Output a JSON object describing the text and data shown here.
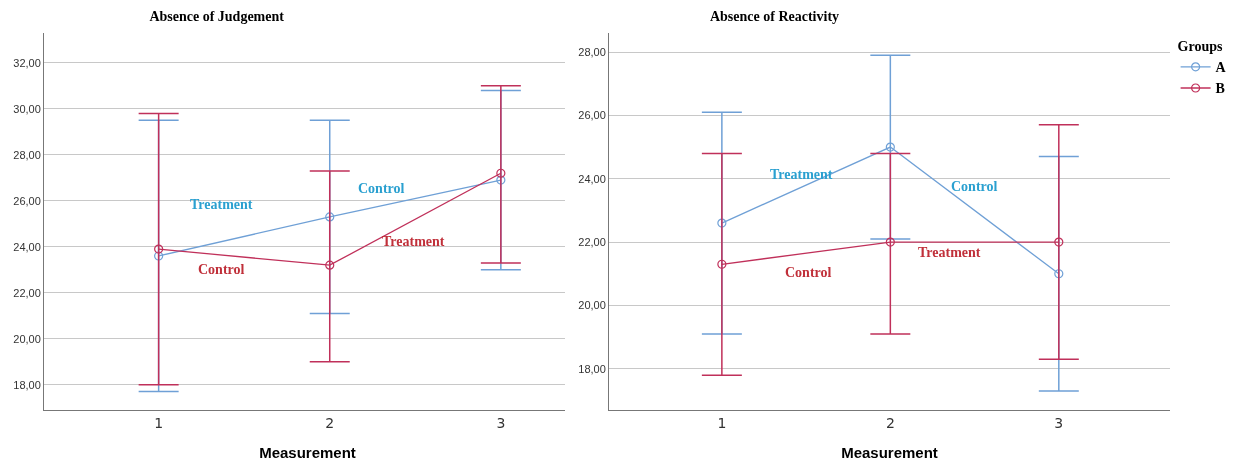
{
  "chart_data": [
    {
      "type": "line",
      "title": "Absence of Judgement",
      "xlabel": "Measurement",
      "x": [
        1,
        2,
        3
      ],
      "xlim": [
        0.33,
        3.41
      ],
      "xticks": [
        1,
        2,
        3
      ],
      "ylim": [
        16.9,
        33.3
      ],
      "yticks": [
        {
          "value": 18,
          "label": "18,00"
        },
        {
          "value": 20,
          "label": "20,00"
        },
        {
          "value": 22,
          "label": "22,00"
        },
        {
          "value": 24,
          "label": "24,00"
        },
        {
          "value": 26,
          "label": "26,00"
        },
        {
          "value": 28,
          "label": "28,00"
        },
        {
          "value": 30,
          "label": "30,00"
        },
        {
          "value": 32,
          "label": "32,00"
        }
      ],
      "grid": "y",
      "legend": false,
      "marker": "circle",
      "line_style": "solid",
      "series": [
        {
          "color": "#6fa0d6",
          "values": [
            23.6,
            25.3,
            26.9
          ],
          "errors": [
            [
              17.7,
              29.5
            ],
            [
              21.1,
              29.5
            ],
            [
              23.0,
              30.8
            ]
          ]
        },
        {
          "color": "#c0305a",
          "values": [
            23.9,
            23.2,
            27.2
          ],
          "errors": [
            [
              18.0,
              29.8
            ],
            [
              19.0,
              27.3
            ],
            [
              23.3,
              31.0
            ]
          ]
        }
      ],
      "annotations": [
        "Treatment",
        "Control",
        "Treatment",
        "Control"
      ]
    },
    {
      "type": "line",
      "title": "Absence of Reactivity",
      "xlabel": "Measurement",
      "legend_title": "Groups",
      "x": [
        1,
        2,
        3
      ],
      "xlim": [
        0.33,
        3.66
      ],
      "xticks": [
        1,
        2,
        3
      ],
      "ylim": [
        16.7,
        28.6
      ],
      "yticks": [
        {
          "value": 18,
          "label": "18,00"
        },
        {
          "value": 20,
          "label": "20,00"
        },
        {
          "value": 22,
          "label": "22,00"
        },
        {
          "value": 24,
          "label": "24,00"
        },
        {
          "value": 26,
          "label": "26,00"
        },
        {
          "value": 28,
          "label": "28,00"
        }
      ],
      "grid": "y",
      "legend": "top right",
      "marker": "circle",
      "line_style": "solid",
      "series": [
        {
          "name": "A",
          "color": "#6fa0d6",
          "values": [
            22.6,
            25.0,
            21.0
          ],
          "errors": [
            [
              19.1,
              26.1
            ],
            [
              22.1,
              27.9
            ],
            [
              17.3,
              24.7
            ]
          ]
        },
        {
          "name": "B",
          "color": "#c0305a",
          "values": [
            21.3,
            22.0,
            22.0
          ],
          "errors": [
            [
              17.8,
              24.8
            ],
            [
              19.1,
              24.8
            ],
            [
              18.3,
              25.7
            ]
          ]
        }
      ],
      "annotations": [
        "Treatment",
        "Control",
        "Treatment",
        "Control"
      ]
    }
  ]
}
